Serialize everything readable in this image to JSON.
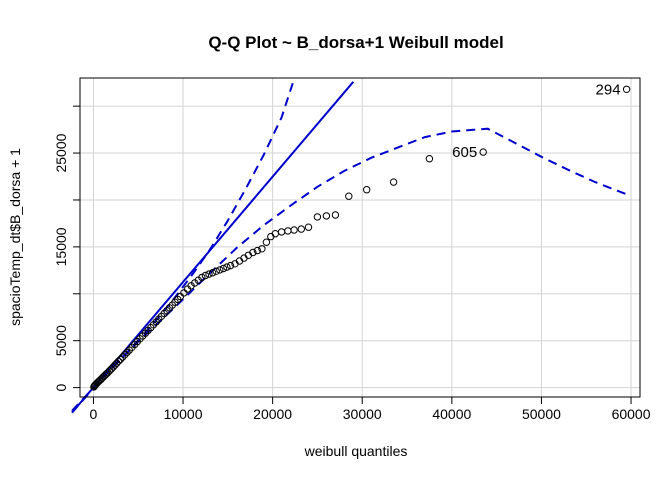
{
  "chart_data": {
    "type": "scatter",
    "title": "Q-Q Plot ~ B_dorsa+1 Weibull model",
    "xlabel": "weibull quantiles",
    "ylabel": "spacioTemp_dt$B_dorsa + 1",
    "xlim": [
      -1500,
      61000
    ],
    "ylim": [
      -1000,
      33000
    ],
    "x_ticks": [
      0,
      10000,
      20000,
      30000,
      40000,
      50000,
      60000
    ],
    "y_ticks": [
      0,
      5000,
      15000,
      25000
    ],
    "grid": true,
    "colors": {
      "points": "#000000",
      "lines": "#0000cd",
      "grid": "#d3d3d3"
    },
    "reference_line": {
      "style": "solid",
      "x": [
        -1500,
        29000
      ],
      "y": [
        -1600,
        32600
      ]
    },
    "envelope_upper": {
      "style": "dashed",
      "x": [
        -1500,
        1000,
        3000,
        5000,
        7000,
        9000,
        11000,
        13000,
        15000,
        17000,
        19000,
        21000,
        22300
      ],
      "y": [
        -1400,
        1000,
        3000,
        5000,
        7200,
        9500,
        12000,
        14700,
        17800,
        21200,
        24800,
        28800,
        32600
      ]
    },
    "envelope_lower": {
      "style": "dashed",
      "x": [
        -1500,
        1000,
        3000,
        5000,
        7000,
        10000,
        13000,
        16000,
        19000,
        22000,
        25000,
        28000,
        31000,
        34000,
        37000,
        40000,
        44000,
        47000,
        50000,
        53000,
        56000,
        59500
      ],
      "y": [
        -1600,
        1000,
        3000,
        4900,
        6700,
        9400,
        12200,
        14900,
        17300,
        19400,
        21400,
        23100,
        24500,
        25600,
        26700,
        27300,
        27600,
        26100,
        24600,
        23200,
        21900,
        20600
      ]
    },
    "series": [
      {
        "x": [
          50,
          120,
          200,
          300,
          420,
          550,
          700,
          850,
          1000,
          1150,
          1300,
          1450,
          1600,
          1800,
          2000,
          2200,
          2400,
          2600,
          2800,
          3000,
          3250,
          3500,
          3750,
          4000,
          4300,
          4600,
          4900,
          5200,
          5500,
          5800,
          6100,
          6400,
          6700,
          7000,
          7300,
          7600,
          7900,
          8200,
          8500,
          8800,
          9100,
          9400,
          9700,
          10100,
          10500,
          10900,
          11300,
          11700,
          12100,
          12500,
          12900,
          13300,
          13700,
          14100,
          14500,
          14900,
          15300,
          15800,
          16300,
          16800,
          17300,
          17800,
          18300,
          18800,
          19300,
          19800,
          20300,
          21000,
          21700,
          22400,
          23200,
          24000,
          25000,
          26000,
          27000,
          28500,
          30500,
          33500,
          37500,
          43500,
          59500
        ],
        "y": [
          80,
          180,
          280,
          380,
          500,
          630,
          760,
          900,
          1040,
          1180,
          1320,
          1460,
          1600,
          1800,
          2000,
          2200,
          2400,
          2600,
          2800,
          3000,
          3250,
          3500,
          3750,
          4000,
          4300,
          4600,
          4900,
          5200,
          5500,
          5800,
          6100,
          6400,
          6700,
          7000,
          7300,
          7600,
          7900,
          8200,
          8500,
          8800,
          9100,
          9400,
          9700,
          10100,
          10500,
          10850,
          11150,
          11450,
          11750,
          11950,
          12100,
          12250,
          12400,
          12550,
          12700,
          12850,
          13000,
          13200,
          13500,
          13800,
          14100,
          14400,
          14600,
          14800,
          15500,
          16100,
          16400,
          16600,
          16700,
          16800,
          16900,
          17100,
          18200,
          18300,
          18400,
          20400,
          21100,
          21900,
          24400,
          25100,
          31800
        ]
      }
    ],
    "annotations": [
      {
        "text": "294",
        "x": 59500,
        "y": 31800,
        "color": "#000000"
      },
      {
        "text": "605",
        "x": 43500,
        "y": 25100,
        "color": "#000000"
      }
    ]
  }
}
